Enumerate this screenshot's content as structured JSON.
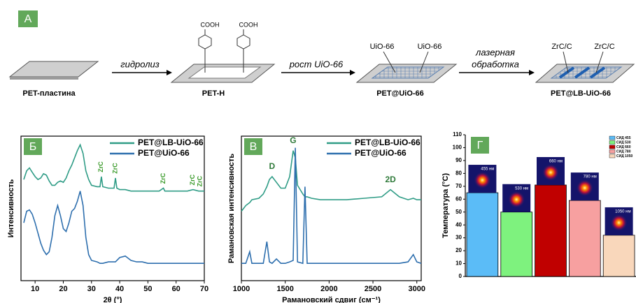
{
  "scheme": {
    "label": "A",
    "steps": [
      "PET-пластина",
      "PET-H",
      "PET@UiO-66",
      "PET@LB-UiO-66"
    ],
    "arrows": [
      [
        "гидролиз"
      ],
      [
        "рост UiO-66"
      ],
      [
        "лазерная",
        "обработка"
      ]
    ],
    "molecule_labels": [
      "COOH",
      "COOH"
    ],
    "mof_labels": [
      "UiO-66",
      "UiO-66"
    ],
    "carbide_labels": [
      "ZrC/C",
      "ZrC/C"
    ]
  },
  "chart_data": [
    {
      "type": "line",
      "panel": "Б",
      "xlabel": "2θ (°)",
      "ylabel": "Интенсивность",
      "x": [
        6,
        7,
        8,
        9,
        10,
        11,
        12,
        13,
        14,
        15,
        16,
        17,
        18,
        19,
        20,
        21,
        22,
        23,
        24,
        25,
        26,
        27,
        28,
        29,
        30,
        32,
        33,
        33.5,
        34,
        36,
        38,
        38.5,
        39,
        40,
        42,
        44,
        46,
        48,
        50,
        52,
        54,
        55.5,
        56,
        58,
        60,
        62,
        64,
        66,
        68,
        70
      ],
      "series": [
        {
          "name": "PET@LB-UiO-66",
          "color": "#2f9c86",
          "values": [
            70,
            76,
            78,
            75,
            72,
            70,
            71,
            74,
            73,
            69,
            66,
            66,
            68,
            69,
            68,
            71,
            76,
            80,
            85,
            90,
            94,
            88,
            76,
            70,
            66,
            65,
            65,
            72,
            65,
            64,
            64,
            71,
            64,
            63,
            63,
            62,
            62,
            62,
            62,
            62,
            62,
            64,
            62,
            62,
            62,
            62,
            62,
            63,
            62,
            62
          ]
        },
        {
          "name": "PET@UiO-66",
          "color": "#2e6fae",
          "values": [
            40,
            48,
            49,
            46,
            40,
            33,
            26,
            21,
            18,
            20,
            30,
            45,
            52,
            45,
            36,
            34,
            40,
            48,
            50,
            55,
            62,
            52,
            30,
            18,
            14,
            13,
            12,
            12,
            12,
            13,
            13,
            13,
            14,
            16,
            17,
            14,
            13,
            13,
            12,
            12,
            12,
            12,
            12,
            12,
            12,
            12,
            12,
            12,
            12,
            12
          ]
        }
      ],
      "annotations": [
        {
          "text": "ZrC",
          "x": 33.5
        },
        {
          "text": "ZrC",
          "x": 38.5
        },
        {
          "text": "ZrC",
          "x": 55.5
        },
        {
          "text": "ZrC",
          "x": 66
        },
        {
          "text": "ZrC",
          "x": 70
        }
      ],
      "xlim": [
        5,
        70
      ],
      "xticks": [
        10,
        20,
        30,
        40,
        50,
        60,
        70
      ],
      "ylim": [
        0,
        100
      ]
    },
    {
      "type": "line",
      "panel": "В",
      "xlabel": "Рамановский сдвиг (см⁻¹)",
      "ylabel": "Рамановская интенсивность",
      "x": [
        1000,
        1050,
        1095,
        1120,
        1200,
        1250,
        1290,
        1320,
        1350,
        1400,
        1450,
        1500,
        1550,
        1590,
        1615,
        1640,
        1700,
        1725,
        1750,
        1800,
        1900,
        2000,
        2200,
        2400,
        2600,
        2700,
        2800,
        2900,
        2960,
        3000,
        3050
      ],
      "series": [
        {
          "name": "PET@LB-UiO-66",
          "color": "#2f9c86",
          "values": [
            48,
            52,
            54,
            56,
            57,
            60,
            65,
            70,
            72,
            68,
            64,
            64,
            72,
            90,
            85,
            66,
            60,
            58,
            58,
            57,
            56,
            56,
            56,
            57,
            58,
            63,
            58,
            56,
            57,
            56,
            56
          ]
        },
        {
          "name": "PET@UiO-66",
          "color": "#2e6fae",
          "values": [
            12,
            12,
            20,
            12,
            12,
            12,
            27,
            13,
            12,
            15,
            12,
            12,
            13,
            14,
            92,
            13,
            12,
            65,
            12,
            12,
            12,
            12,
            12,
            12,
            12,
            12,
            12,
            13,
            18,
            13,
            12
          ]
        }
      ],
      "annotations": [
        {
          "text": "D",
          "x": 1350
        },
        {
          "text": "G",
          "x": 1590
        },
        {
          "text": "2D",
          "x": 2700
        }
      ],
      "xlim": [
        1000,
        3050
      ],
      "xticks": [
        1000,
        1500,
        2000,
        2500,
        3000
      ],
      "ylim": [
        0,
        100
      ]
    },
    {
      "type": "bar",
      "panel": "Г",
      "ylabel": "Температура (°C)",
      "categories": [
        "СИД 455",
        "СИД 530",
        "СИД 660",
        "СИД 780",
        "СИД 1050"
      ],
      "values": [
        65,
        50,
        71,
        59,
        32
      ],
      "colors": [
        "#5bbcf7",
        "#7ef27e",
        "#c00000",
        "#f7a0a0",
        "#f9d7bb"
      ],
      "inset_labels": [
        "455 нм",
        "530 нм",
        "660 нм",
        "780 нм",
        "1050 нм"
      ],
      "ylim": [
        0,
        110
      ],
      "yticks": [
        0,
        10,
        20,
        30,
        40,
        50,
        60,
        70,
        80,
        90,
        100,
        110
      ]
    }
  ]
}
